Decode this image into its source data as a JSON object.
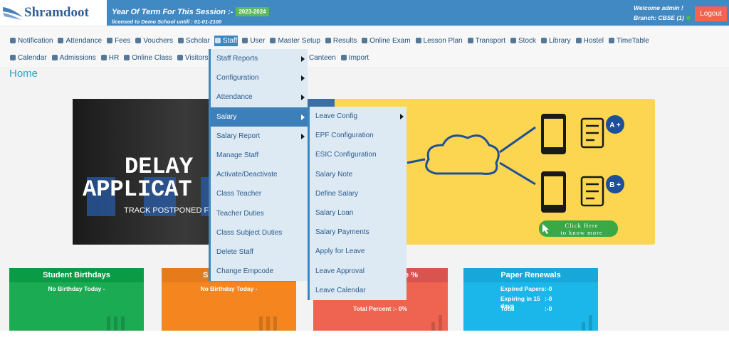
{
  "header": {
    "logo": "Shramdoot",
    "session_label": "Year Of Term For This Session :-",
    "session": "2023-2024",
    "license": "licensed to Demo School untill : 01-01-2100",
    "welcome": "Welcome admin !",
    "branch": "Branch: CBSE (1)",
    "logout": "Logout"
  },
  "nav": {
    "row1": [
      "Notification",
      "Attendance",
      "Fees",
      "Vouchers",
      "Scholar",
      "Staff",
      "User",
      "Master Setup",
      "Results",
      "Online Exam",
      "Lesson Plan",
      "Transport",
      "Stock",
      "Library",
      "Hostel",
      "TimeTable"
    ],
    "active": 5,
    "row2": [
      "Calendar",
      "Admissions",
      "HR",
      "Online Class",
      "Visitors"
    ],
    "row2_right": [
      "Canteen",
      "Import"
    ]
  },
  "page_title": "Home",
  "banner": {
    "lines": [
      "DELAY",
      "APPLICAT",
      "TRACK POSTPONED FEE D"
    ],
    "badges": [
      "A +",
      "B +"
    ],
    "cta": [
      "Click Here",
      "to know more"
    ]
  },
  "cards": [
    {
      "title": "Student Birthdays",
      "rows": [
        "No Birthday Today -"
      ]
    },
    {
      "title": "S",
      "rows": [
        "No Birthday Today -"
      ]
    },
    {
      "title": "e %",
      "rows": [
        "Total Percent  :- 0%"
      ]
    },
    {
      "title": "Paper Renewals",
      "rows": [
        [
          "Expired Papers",
          ":-0"
        ],
        [
          "Expiring in 15 days",
          ":-0"
        ],
        [
          "Total",
          ":-0"
        ]
      ]
    }
  ],
  "staff_menu": {
    "items": [
      {
        "label": "Staff Reports",
        "submenu": true
      },
      {
        "label": "Configuration",
        "submenu": true
      },
      {
        "label": "Attendance",
        "submenu": true
      },
      {
        "label": "Salary",
        "submenu": true
      },
      {
        "label": "Salary Report",
        "submenu": true
      },
      {
        "label": "Manage Staff",
        "submenu": false
      },
      {
        "label": "Activate/Deactivate",
        "submenu": false
      },
      {
        "label": "Class Teacher",
        "submenu": false
      },
      {
        "label": "Teacher Duties",
        "submenu": false
      },
      {
        "label": "Class Subject Duties",
        "submenu": false
      },
      {
        "label": "Delete Staff",
        "submenu": false
      },
      {
        "label": "Change Empcode",
        "submenu": false
      }
    ],
    "active": 3
  },
  "salary_menu": {
    "items": [
      {
        "label": "Leave Config",
        "submenu": true
      },
      {
        "label": "EPF Configuration",
        "submenu": false
      },
      {
        "label": "ESIC Configuration",
        "submenu": false
      },
      {
        "label": "Salary Note",
        "submenu": false
      },
      {
        "label": "Define Salary",
        "submenu": false
      },
      {
        "label": "Salary Loan",
        "submenu": false
      },
      {
        "label": "Salary Payments",
        "submenu": false
      },
      {
        "label": "Apply for Leave",
        "submenu": false
      },
      {
        "label": "Leave Approval",
        "submenu": false
      },
      {
        "label": "Leave Calendar",
        "submenu": false
      }
    ]
  }
}
